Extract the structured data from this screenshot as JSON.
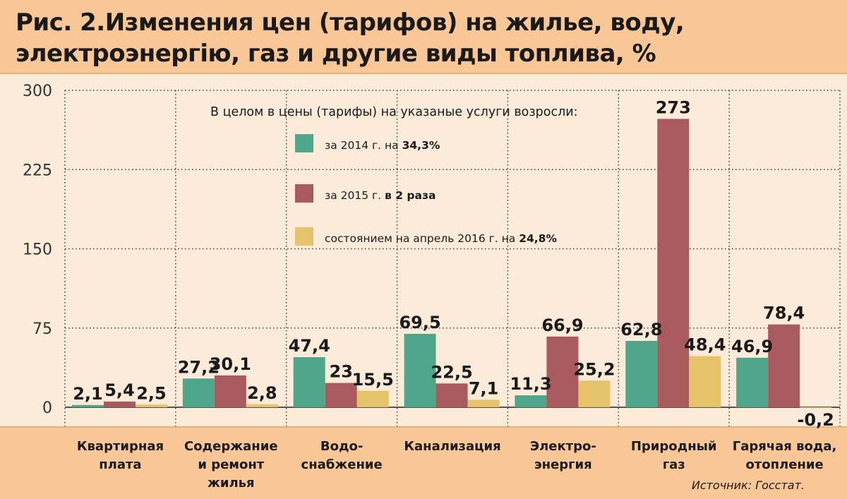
{
  "title": "Рис. 2.Изменения цен (тарифов) на жилье, воду, электроэнергію, газ и другие виды топлива, %",
  "source": "Источник: Госстат.",
  "colors": {
    "s2014": "#4fa68b",
    "s2015": "#a85a5d",
    "s2016": "#e6c26a"
  },
  "legend": {
    "heading": "В целом в цены (тарифы) на указаные услуги возросли:",
    "items": [
      {
        "prefix": "за 2014 г. на ",
        "bold": "34,3%"
      },
      {
        "prefix": "за 2015 г. ",
        "bold": "в 2 раза"
      },
      {
        "prefix": "состоянием на апрель 2016 г. на ",
        "bold": "24,8%"
      }
    ]
  },
  "chart_data": {
    "type": "bar",
    "title": "Рис. 2.Изменения цен (тарифов) на жилье, воду, электроэнергію, газ и другие виды топлива, %",
    "categories": [
      [
        "Квартирная",
        "плата"
      ],
      [
        "Содержание",
        "и ремонт",
        "жилья"
      ],
      [
        "Водо-",
        "снабжение"
      ],
      [
        "Канализация"
      ],
      [
        "Электро-",
        "энергия"
      ],
      [
        "Природный",
        "газ"
      ],
      [
        "Гарячая вода,",
        "отопление"
      ]
    ],
    "series": [
      {
        "values": [
          2.1,
          27.2,
          47.4,
          69.5,
          11.3,
          62.8,
          46.9
        ],
        "labels": [
          "2,1",
          "27,2",
          "47,4",
          "69,5",
          "11,3",
          "62,8",
          "46,9"
        ]
      },
      {
        "values": [
          5.4,
          30.1,
          23,
          22.5,
          66.9,
          273,
          78.4
        ],
        "labels": [
          "5,4",
          "30,1",
          "23",
          "22,5",
          "66,9",
          "273",
          "78,4"
        ]
      },
      {
        "values": [
          2.5,
          2.8,
          15.5,
          7.1,
          25.2,
          48.4,
          -0.2
        ],
        "labels": [
          "2,5",
          "2,8",
          "15,5",
          "7,1",
          "25,2",
          "48,4",
          "-0,2"
        ]
      }
    ],
    "yticks": [
      "0",
      "75",
      "150",
      "225",
      "300"
    ],
    "ylim": [
      0,
      300
    ],
    "grid": true,
    "legend_position": "top-center"
  }
}
